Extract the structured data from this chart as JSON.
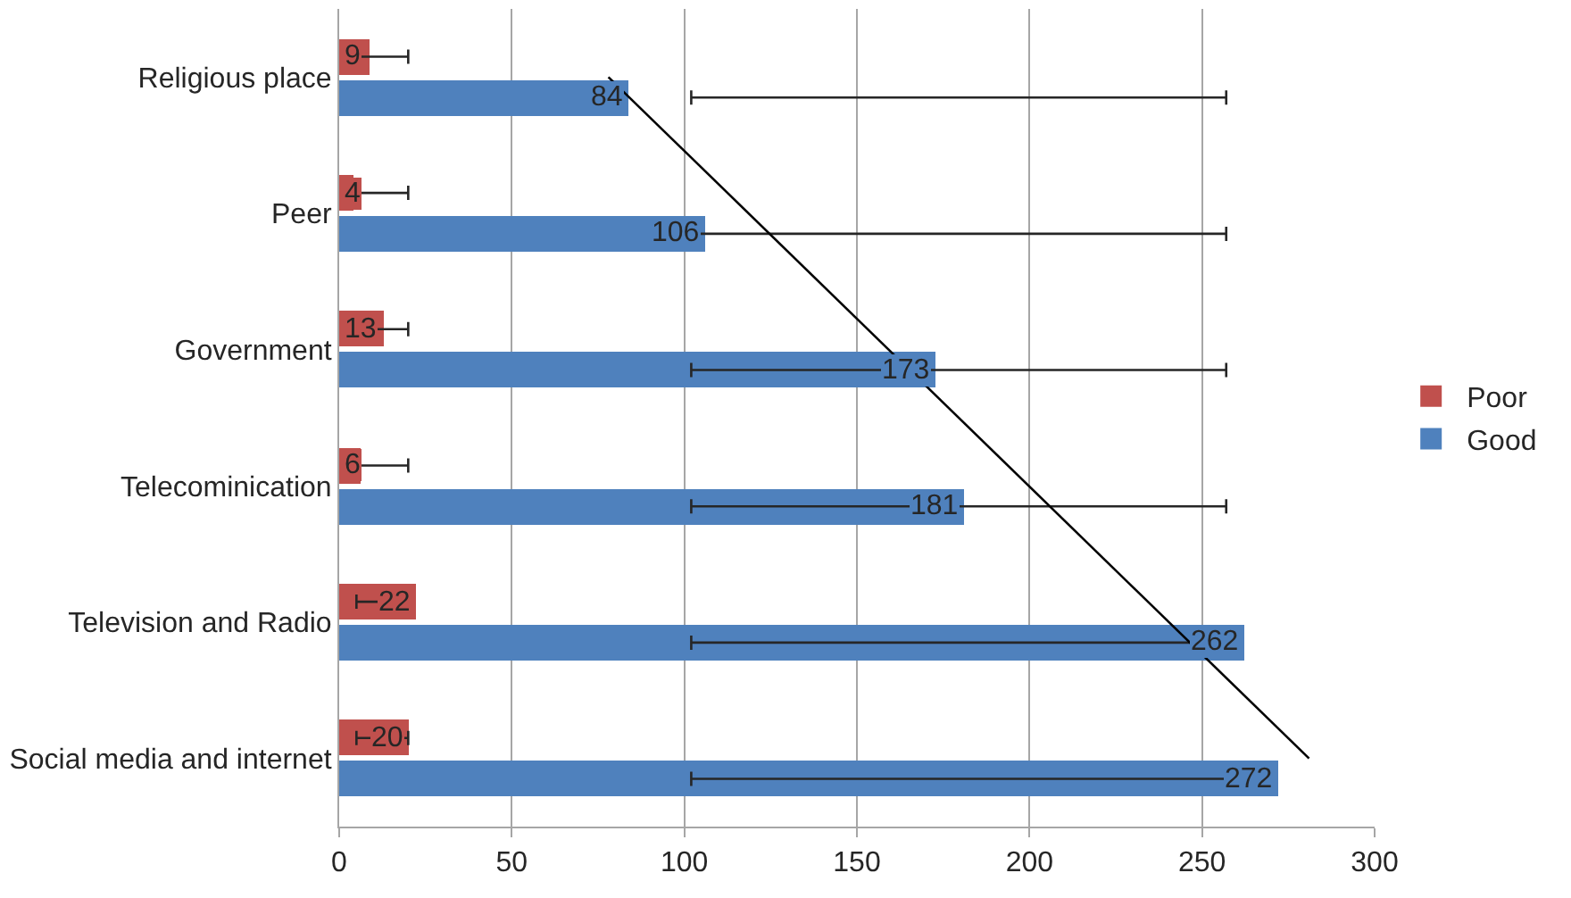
{
  "chart_data": {
    "type": "bar",
    "orientation": "horizontal",
    "categories": [
      "Religious place",
      "Peer",
      "Government",
      "Telecominication",
      "Television and Radio",
      "Social media and internet"
    ],
    "series": [
      {
        "name": "Poor",
        "color": "#c0504d",
        "values": [
          9,
          4,
          13,
          6,
          22,
          20
        ],
        "value_labels": [
          "9",
          "4",
          "13",
          "6",
          "22",
          "20"
        ],
        "errors": [
          [
            5,
            20
          ],
          [
            5,
            20
          ],
          [
            5,
            20
          ],
          [
            5,
            20
          ],
          [
            5,
            20
          ],
          [
            5,
            20
          ]
        ]
      },
      {
        "name": "Good",
        "color": "#4f81bd",
        "values": [
          84,
          106,
          173,
          181,
          262,
          272
        ],
        "value_labels": [
          "84",
          "106",
          "173",
          "181",
          "262",
          "272"
        ],
        "errors": [
          [
            102,
            257
          ],
          [
            102,
            257
          ],
          [
            102,
            257
          ],
          [
            102,
            257
          ],
          [
            102,
            257
          ],
          [
            102,
            257
          ]
        ]
      },
      {
        "type": "line",
        "color": "#000000",
        "values": [
          78,
          null,
          null,
          null,
          null,
          281
        ]
      }
    ],
    "xlim": [
      0,
      300
    ],
    "xticks": [
      0,
      50,
      100,
      150,
      200,
      250,
      300
    ],
    "grid": "x",
    "legend": "right"
  }
}
